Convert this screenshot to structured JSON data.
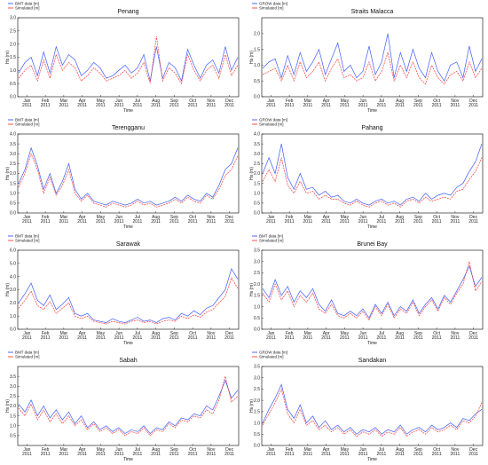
{
  "chart_data": [
    {
      "type": "line",
      "title": "Penang",
      "xlabel": "Time",
      "ylabel": "Hs (m)",
      "ylim": [
        0,
        3.0
      ],
      "yticks": [
        "0.0",
        "0.5",
        "1.0",
        "1.5",
        "2.0",
        "2.5",
        "3.0"
      ],
      "series": [
        {
          "name": "BMT data [m]",
          "color": "#1f3fff",
          "values": [
            0.9,
            1.3,
            1.5,
            0.8,
            1.7,
            0.9,
            1.9,
            1.2,
            1.6,
            1.4,
            0.8,
            1.0,
            1.3,
            1.1,
            0.7,
            0.8,
            1.0,
            1.2,
            0.9,
            1.1,
            1.6,
            0.6,
            1.9,
            0.7,
            1.3,
            1.1,
            0.6,
            1.8,
            1.2,
            0.7,
            1.2,
            1.4,
            0.9,
            1.9,
            1.0,
            1.5
          ]
        },
        {
          "name": "Simulated [m]",
          "color": "#ff2020",
          "values": [
            0.7,
            1.0,
            1.2,
            0.6,
            1.4,
            0.7,
            1.6,
            1.0,
            1.3,
            1.1,
            0.6,
            0.8,
            1.1,
            0.9,
            0.6,
            0.7,
            0.8,
            1.0,
            0.7,
            0.9,
            1.3,
            0.5,
            2.3,
            0.6,
            1.1,
            0.9,
            0.5,
            1.6,
            1.0,
            0.6,
            1.0,
            1.2,
            0.7,
            1.6,
            0.8,
            1.2
          ]
        }
      ]
    },
    {
      "type": "line",
      "title": "Straits Malacca",
      "xlabel": "Time",
      "ylabel": "Hs (m)",
      "ylim": [
        0,
        2.5
      ],
      "yticks": [
        "0.0",
        "0.5",
        "1.0",
        "1.5",
        "2.0"
      ],
      "series": [
        {
          "name": "GROW data [m]",
          "color": "#1f3fff",
          "values": [
            0.9,
            1.1,
            1.2,
            0.6,
            1.3,
            0.7,
            1.4,
            0.8,
            1.1,
            1.5,
            0.7,
            1.2,
            1.7,
            0.8,
            1.0,
            0.6,
            0.8,
            1.6,
            0.7,
            1.1,
            2.0,
            0.6,
            1.4,
            0.8,
            1.5,
            0.9,
            0.6,
            1.4,
            0.8,
            0.5,
            1.0,
            1.1,
            0.6,
            1.6,
            0.8,
            1.2
          ]
        },
        {
          "name": "Simulated [m]",
          "color": "#ff2020",
          "values": [
            0.7,
            0.8,
            0.9,
            0.5,
            1.0,
            0.5,
            1.1,
            0.6,
            0.8,
            1.1,
            0.5,
            0.9,
            1.2,
            0.6,
            0.7,
            0.5,
            0.6,
            1.1,
            0.5,
            0.8,
            1.4,
            0.5,
            1.0,
            0.6,
            1.1,
            0.6,
            0.4,
            1.0,
            0.6,
            0.4,
            0.7,
            0.8,
            0.5,
            1.1,
            0.6,
            0.9
          ]
        }
      ]
    },
    {
      "type": "line",
      "title": "Terengganu",
      "xlabel": "Time",
      "ylabel": "Hs (m)",
      "ylim": [
        0,
        4.0
      ],
      "yticks": [
        "0.0",
        "0.5",
        "1.0",
        "1.5",
        "2.0",
        "2.5",
        "3.0",
        "3.5",
        "4.0"
      ],
      "series": [
        {
          "name": "BMT data [m]",
          "color": "#1f3fff",
          "values": [
            1.5,
            2.2,
            3.3,
            2.4,
            1.2,
            2.0,
            1.0,
            1.6,
            2.5,
            1.2,
            0.7,
            1.0,
            0.6,
            0.5,
            0.4,
            0.6,
            0.5,
            0.4,
            0.5,
            0.7,
            0.5,
            0.6,
            0.4,
            0.5,
            0.6,
            0.8,
            0.6,
            0.9,
            0.7,
            0.6,
            1.0,
            0.8,
            1.4,
            2.2,
            2.5,
            3.3
          ]
        },
        {
          "name": "Simulated [m]",
          "color": "#ff2020",
          "values": [
            1.3,
            2.0,
            3.0,
            2.2,
            1.0,
            1.8,
            0.9,
            1.4,
            2.2,
            1.0,
            0.6,
            0.9,
            0.5,
            0.4,
            0.3,
            0.5,
            0.4,
            0.3,
            0.4,
            0.6,
            0.4,
            0.5,
            0.3,
            0.4,
            0.5,
            0.7,
            0.5,
            0.8,
            0.6,
            0.5,
            0.9,
            0.7,
            1.2,
            1.9,
            2.2,
            2.9
          ]
        }
      ]
    },
    {
      "type": "line",
      "title": "Pahang",
      "xlabel": "Time",
      "ylabel": "Hs (m)",
      "ylim": [
        0,
        4.0
      ],
      "yticks": [
        "0.0",
        "0.5",
        "1.0",
        "1.5",
        "2.0",
        "2.5",
        "3.0",
        "3.5",
        "4.0"
      ],
      "series": [
        {
          "name": "GROW data [m]",
          "color": "#1f3fff",
          "values": [
            2.0,
            2.8,
            2.0,
            3.5,
            1.8,
            1.2,
            2.0,
            1.2,
            1.3,
            0.9,
            1.1,
            0.8,
            0.9,
            0.6,
            0.5,
            0.7,
            0.5,
            0.4,
            0.6,
            0.7,
            0.5,
            0.6,
            0.4,
            0.7,
            0.8,
            0.6,
            1.0,
            0.7,
            0.9,
            1.0,
            0.9,
            1.3,
            1.5,
            2.1,
            2.6,
            3.5
          ]
        },
        {
          "name": "Simulated [m]",
          "color": "#ff2020",
          "values": [
            1.6,
            2.2,
            1.6,
            2.8,
            1.4,
            1.0,
            1.6,
            1.0,
            1.1,
            0.7,
            0.9,
            0.7,
            0.7,
            0.5,
            0.4,
            0.6,
            0.4,
            0.3,
            0.5,
            0.6,
            0.4,
            0.5,
            0.3,
            0.6,
            0.7,
            0.5,
            0.8,
            0.6,
            0.7,
            0.8,
            0.7,
            1.1,
            1.2,
            1.7,
            2.1,
            2.8
          ]
        }
      ]
    },
    {
      "type": "line",
      "title": "Sarawak",
      "xlabel": "Time",
      "ylabel": "Hs (m)",
      "ylim": [
        0,
        6.0
      ],
      "yticks": [
        "0.0",
        "1.0",
        "2.0",
        "3.0",
        "4.0",
        "5.0",
        "6.0"
      ],
      "series": [
        {
          "name": "BMT data [m]",
          "color": "#1f3fff",
          "values": [
            2.0,
            2.7,
            3.5,
            2.2,
            1.8,
            2.6,
            1.5,
            1.9,
            2.4,
            1.2,
            1.0,
            1.2,
            0.7,
            0.6,
            0.5,
            0.8,
            0.6,
            0.5,
            0.7,
            0.9,
            0.6,
            0.7,
            0.5,
            0.8,
            0.9,
            0.7,
            1.2,
            1.0,
            1.4,
            1.1,
            1.6,
            1.8,
            2.4,
            3.0,
            4.6,
            3.8
          ]
        },
        {
          "name": "Simulated [m]",
          "color": "#ff2020",
          "values": [
            1.6,
            2.2,
            2.9,
            1.8,
            1.5,
            2.1,
            1.2,
            1.6,
            2.0,
            1.0,
            0.8,
            1.0,
            0.6,
            0.5,
            0.4,
            0.6,
            0.5,
            0.4,
            0.6,
            0.7,
            0.5,
            0.6,
            0.4,
            0.6,
            0.7,
            0.6,
            1.0,
            0.8,
            1.1,
            0.9,
            1.3,
            1.5,
            2.0,
            2.5,
            3.9,
            3.1
          ]
        }
      ]
    },
    {
      "type": "line",
      "title": "Brunei Bay",
      "xlabel": "Time",
      "ylabel": "Hs (m)",
      "ylim": [
        0,
        3.5
      ],
      "yticks": [
        "0.0",
        "0.5",
        "1.0",
        "1.5",
        "2.0",
        "2.5",
        "3.0",
        "3.5"
      ],
      "series": [
        {
          "name": "BMT data [m]",
          "color": "#1f3fff",
          "values": [
            1.8,
            1.4,
            2.2,
            1.5,
            1.9,
            1.2,
            1.7,
            1.4,
            1.8,
            1.1,
            0.8,
            1.3,
            0.7,
            0.6,
            0.8,
            0.6,
            0.9,
            0.5,
            1.1,
            0.7,
            1.2,
            0.6,
            1.0,
            0.8,
            1.3,
            0.7,
            1.1,
            1.4,
            0.9,
            1.5,
            1.2,
            1.7,
            2.2,
            2.8,
            1.9,
            2.3
          ]
        },
        {
          "name": "Simulated [m]",
          "color": "#ff2020",
          "values": [
            1.6,
            1.2,
            2.0,
            1.3,
            1.7,
            1.0,
            1.5,
            1.2,
            1.6,
            0.9,
            0.7,
            1.1,
            0.6,
            0.5,
            0.7,
            0.5,
            0.8,
            0.4,
            1.0,
            0.6,
            1.1,
            0.5,
            0.9,
            0.7,
            1.2,
            0.6,
            1.0,
            1.3,
            0.8,
            1.4,
            1.1,
            1.6,
            2.0,
            3.0,
            1.7,
            2.1
          ]
        }
      ]
    },
    {
      "type": "line",
      "title": "Sabah",
      "xlabel": "Time",
      "ylabel": "Hs (m)",
      "ylim": [
        0,
        4.0
      ],
      "yticks": [
        "0.5",
        "1.0",
        "1.5",
        "2.0",
        "2.5",
        "3.0",
        "3.5"
      ],
      "series": [
        {
          "name": "BMT data [m]",
          "color": "#1f3fff",
          "values": [
            2.1,
            1.7,
            2.3,
            1.5,
            2.0,
            1.4,
            1.8,
            1.3,
            1.7,
            1.1,
            1.5,
            0.9,
            1.2,
            0.8,
            1.0,
            0.7,
            0.9,
            0.6,
            0.8,
            0.7,
            1.0,
            0.6,
            0.9,
            0.8,
            1.2,
            1.0,
            1.4,
            1.3,
            1.6,
            1.5,
            2.0,
            1.8,
            2.5,
            3.3,
            2.4,
            2.8
          ]
        },
        {
          "name": "Simulated [m]",
          "color": "#ff2020",
          "values": [
            1.9,
            1.5,
            2.1,
            1.3,
            1.8,
            1.2,
            1.6,
            1.1,
            1.5,
            1.0,
            1.3,
            0.8,
            1.1,
            0.7,
            0.9,
            0.6,
            0.8,
            0.5,
            0.7,
            0.6,
            0.9,
            0.5,
            0.8,
            0.7,
            1.1,
            0.9,
            1.3,
            1.2,
            1.5,
            1.4,
            1.8,
            1.6,
            2.3,
            3.5,
            2.2,
            2.5
          ]
        }
      ]
    },
    {
      "type": "line",
      "title": "Sandakan",
      "xlabel": "Time",
      "ylabel": "Hs (m)",
      "ylim": [
        0,
        3.5
      ],
      "yticks": [
        "0.0",
        "0.5",
        "1.0",
        "1.5",
        "2.0",
        "2.5",
        "3.0",
        "3.5"
      ],
      "series": [
        {
          "name": "GROW data [m]",
          "color": "#1f3fff",
          "values": [
            1.0,
            1.6,
            2.1,
            2.7,
            1.6,
            1.2,
            1.8,
            1.0,
            1.3,
            0.8,
            1.1,
            0.7,
            0.9,
            0.6,
            0.8,
            0.5,
            0.7,
            0.6,
            0.8,
            0.5,
            0.7,
            0.6,
            0.9,
            0.5,
            0.7,
            0.8,
            0.6,
            0.9,
            0.7,
            0.8,
            1.0,
            0.8,
            1.2,
            1.1,
            1.4,
            1.6
          ]
        },
        {
          "name": "Simulated [m]",
          "color": "#ff2020",
          "values": [
            0.9,
            1.4,
            1.9,
            2.5,
            1.4,
            1.0,
            1.6,
            0.9,
            1.1,
            0.7,
            0.9,
            0.6,
            0.8,
            0.5,
            0.7,
            0.4,
            0.6,
            0.5,
            0.7,
            0.4,
            0.6,
            0.5,
            0.8,
            0.4,
            0.6,
            0.7,
            0.5,
            0.8,
            0.6,
            0.7,
            0.9,
            0.7,
            1.1,
            1.0,
            1.3,
            1.9
          ]
        }
      ]
    }
  ],
  "months": [
    "Jan",
    "Feb",
    "Mar",
    "Apr",
    "May",
    "Jun",
    "Jul",
    "Aug",
    "Sep",
    "Oct",
    "Nov",
    "Dec"
  ],
  "year": "2011"
}
